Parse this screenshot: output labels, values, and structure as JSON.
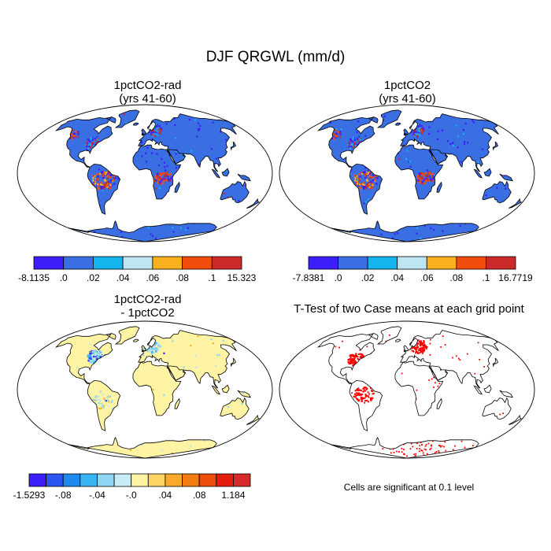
{
  "title": "DJF QRGWL (mm/d)",
  "note": "Cells are significant at 0.1 level",
  "colors": {
    "c_dblue": "#3b1efa",
    "c_mblue": "#3a6ee3",
    "c_cyan": "#14b4ef",
    "c_lblue": "#bde6f2",
    "c_orange": "#f9b21d",
    "c_redorange": "#f24d0c",
    "c_red": "#cc2a2a",
    "d_yellow": "#fff3a4",
    "sig_red": "#ff0000"
  },
  "chart_data": [
    {
      "type": "heatmap",
      "title": "1pctCO2-rad",
      "subtitle": "(yrs 41-60)",
      "projection": "robinson",
      "fill": "mostly 0 to .02 (medium blue), tropical South America and central Africa .08 to .1",
      "colorbar": {
        "labels": [
          "-8.1135",
          ".0",
          ".02",
          ".04",
          ".06",
          ".08",
          ".1",
          "15.323"
        ],
        "colors": [
          "#3b1efa",
          "#3a6ee3",
          "#14b4ef",
          "#bde6f2",
          "#f9b21d",
          "#f24d0c",
          "#cc2a2a"
        ]
      }
    },
    {
      "type": "heatmap",
      "title": "1pctCO2",
      "subtitle": "(yrs 41-60)",
      "projection": "robinson",
      "fill": "mostly 0 to .02 (medium blue), tropical South America and central Africa .08 to .1",
      "colorbar": {
        "labels": [
          "-7.8381",
          ".0",
          ".02",
          ".04",
          ".06",
          ".08",
          ".1",
          "16.7719"
        ],
        "colors": [
          "#3b1efa",
          "#3a6ee3",
          "#14b4ef",
          "#bde6f2",
          "#f9b21d",
          "#f24d0c",
          "#cc2a2a"
        ]
      }
    },
    {
      "type": "heatmap",
      "title": "1pctCO2-rad",
      "subtitle": "- 1pctCO2",
      "projection": "robinson",
      "fill": "mostly -.0 to .04 (pale yellow), light blue over eastern North America and northern Europe",
      "colorbar": {
        "labels": [
          "-1.5293",
          "-.08",
          "-.04",
          "-.0",
          ".04",
          ".08",
          "1.184"
        ],
        "colors": [
          "#3b1efa",
          "#2b55f0",
          "#1e8af0",
          "#38b4f3",
          "#8fd6f4",
          "#c7ecf6",
          "#fff3a4",
          "#fed564",
          "#fba82b",
          "#f47c13",
          "#ee4d0b",
          "#e51d0e",
          "#d82a2a"
        ]
      }
    },
    {
      "type": "heatmap",
      "title": "T-Test of two Case means at each grid point",
      "projection": "robinson",
      "fill": "significant cells in red over land",
      "note": "Cells are significant at 0.1 level"
    }
  ]
}
